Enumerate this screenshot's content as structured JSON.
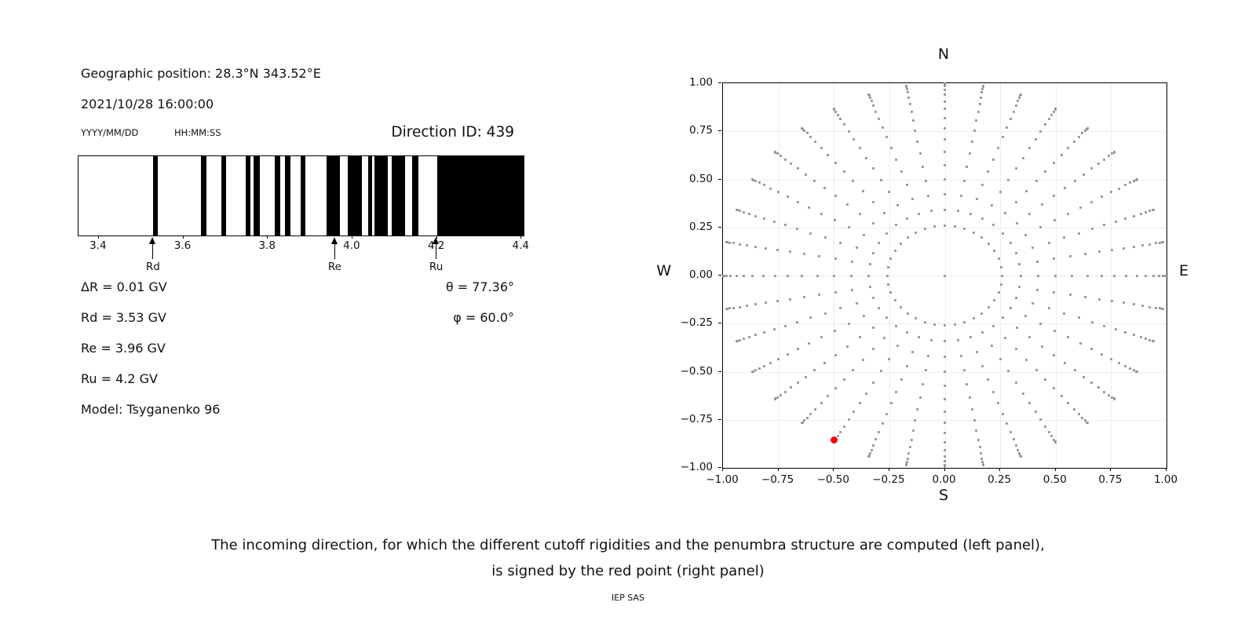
{
  "header": {
    "geographic_position": "Geographic position: 28.3°N 343.52°E",
    "datetime": "2021/10/28 16:00:00",
    "date_format_label": "YYYY/MM/DD",
    "time_format_label": "HH:MM:SS",
    "direction_id": "Direction ID: 439"
  },
  "left_panel": {
    "values": [
      "ΔR = 0.01 GV",
      "Rd = 3.53 GV",
      "Re = 3.96 GV",
      "Ru = 4.2 GV",
      "Model: Tsyganenko 96"
    ],
    "angle_values": [
      "θ = 77.36°",
      "φ = 60.0°"
    ]
  },
  "caption": {
    "line1": "The incoming direction, for which the different cutoff rigidities and the penumbra structure are computed (left panel),",
    "line2": "is signed by the red point (right panel)"
  },
  "footer": "IEP SAS",
  "chart_data": [
    {
      "type": "bar",
      "name": "penumbra-structure",
      "description": "Penumbra structure: black bars are forbidden rigidity intervals, white is allowed",
      "x_range": [
        3.352,
        4.405
      ],
      "x_tick_values": [
        3.4,
        3.6,
        3.8,
        4.0,
        4.2,
        4.4
      ],
      "x_tick_labels": [
        "3.4",
        "3.6",
        "3.8",
        "4.0",
        "4.2",
        "4.4"
      ],
      "bar_color": "#000000",
      "forbidden_intervals_gv": [
        [
          3.528,
          3.54
        ],
        [
          3.641,
          3.654
        ],
        [
          3.689,
          3.701
        ],
        [
          3.747,
          3.759
        ],
        [
          3.766,
          3.781
        ],
        [
          3.817,
          3.83
        ],
        [
          3.841,
          3.853
        ],
        [
          3.878,
          3.888
        ],
        [
          3.938,
          3.971
        ],
        [
          3.988,
          4.022
        ],
        [
          4.038,
          4.047
        ],
        [
          4.052,
          4.084
        ],
        [
          4.092,
          4.125
        ],
        [
          4.142,
          4.156
        ],
        [
          4.2,
          4.405
        ]
      ],
      "markers": [
        {
          "label": "Rd",
          "gv": 3.53
        },
        {
          "label": "Re",
          "gv": 3.96
        },
        {
          "label": "Ru",
          "gv": 4.2
        }
      ]
    },
    {
      "type": "scatter",
      "name": "incoming-directions",
      "x_range": [
        -1,
        1
      ],
      "y_range": [
        -1,
        1
      ],
      "x_tick_values": [
        -1,
        -0.75,
        -0.5,
        -0.25,
        0,
        0.25,
        0.5,
        0.75,
        1
      ],
      "x_tick_labels": [
        "−1.00",
        "−0.75",
        "−0.50",
        "−0.25",
        "0.00",
        "0.25",
        "0.50",
        "0.75",
        "1.00"
      ],
      "y_tick_values": [
        1,
        0.75,
        0.5,
        0.25,
        0,
        -0.25,
        -0.5,
        -0.75,
        -1
      ],
      "y_tick_labels": [
        "1.00",
        "0.75",
        "0.50",
        "0.25",
        "0.00",
        "−0.25",
        "−0.50",
        "−0.75",
        "−1.00"
      ],
      "grid": true,
      "compass": {
        "top": "N",
        "bottom": "S",
        "left": "W",
        "right": "E"
      },
      "dot_color": "#949494",
      "direction_grid": {
        "azimuth_start_deg": 0,
        "azimuth_step_deg": 10,
        "azimuth_count": 36,
        "zenith_min_deg": 15,
        "zenith_max_deg": 90,
        "zenith_step_deg": 5,
        "radius": "sin(zenith)",
        "projection": "x = sin(zenith)*sin(azimuth), y = sin(zenith)*cos(azimuth)",
        "includes_center_point": true
      },
      "red_point": {
        "x": -0.5,
        "y": -0.855,
        "color": "#ff0000"
      }
    }
  ]
}
